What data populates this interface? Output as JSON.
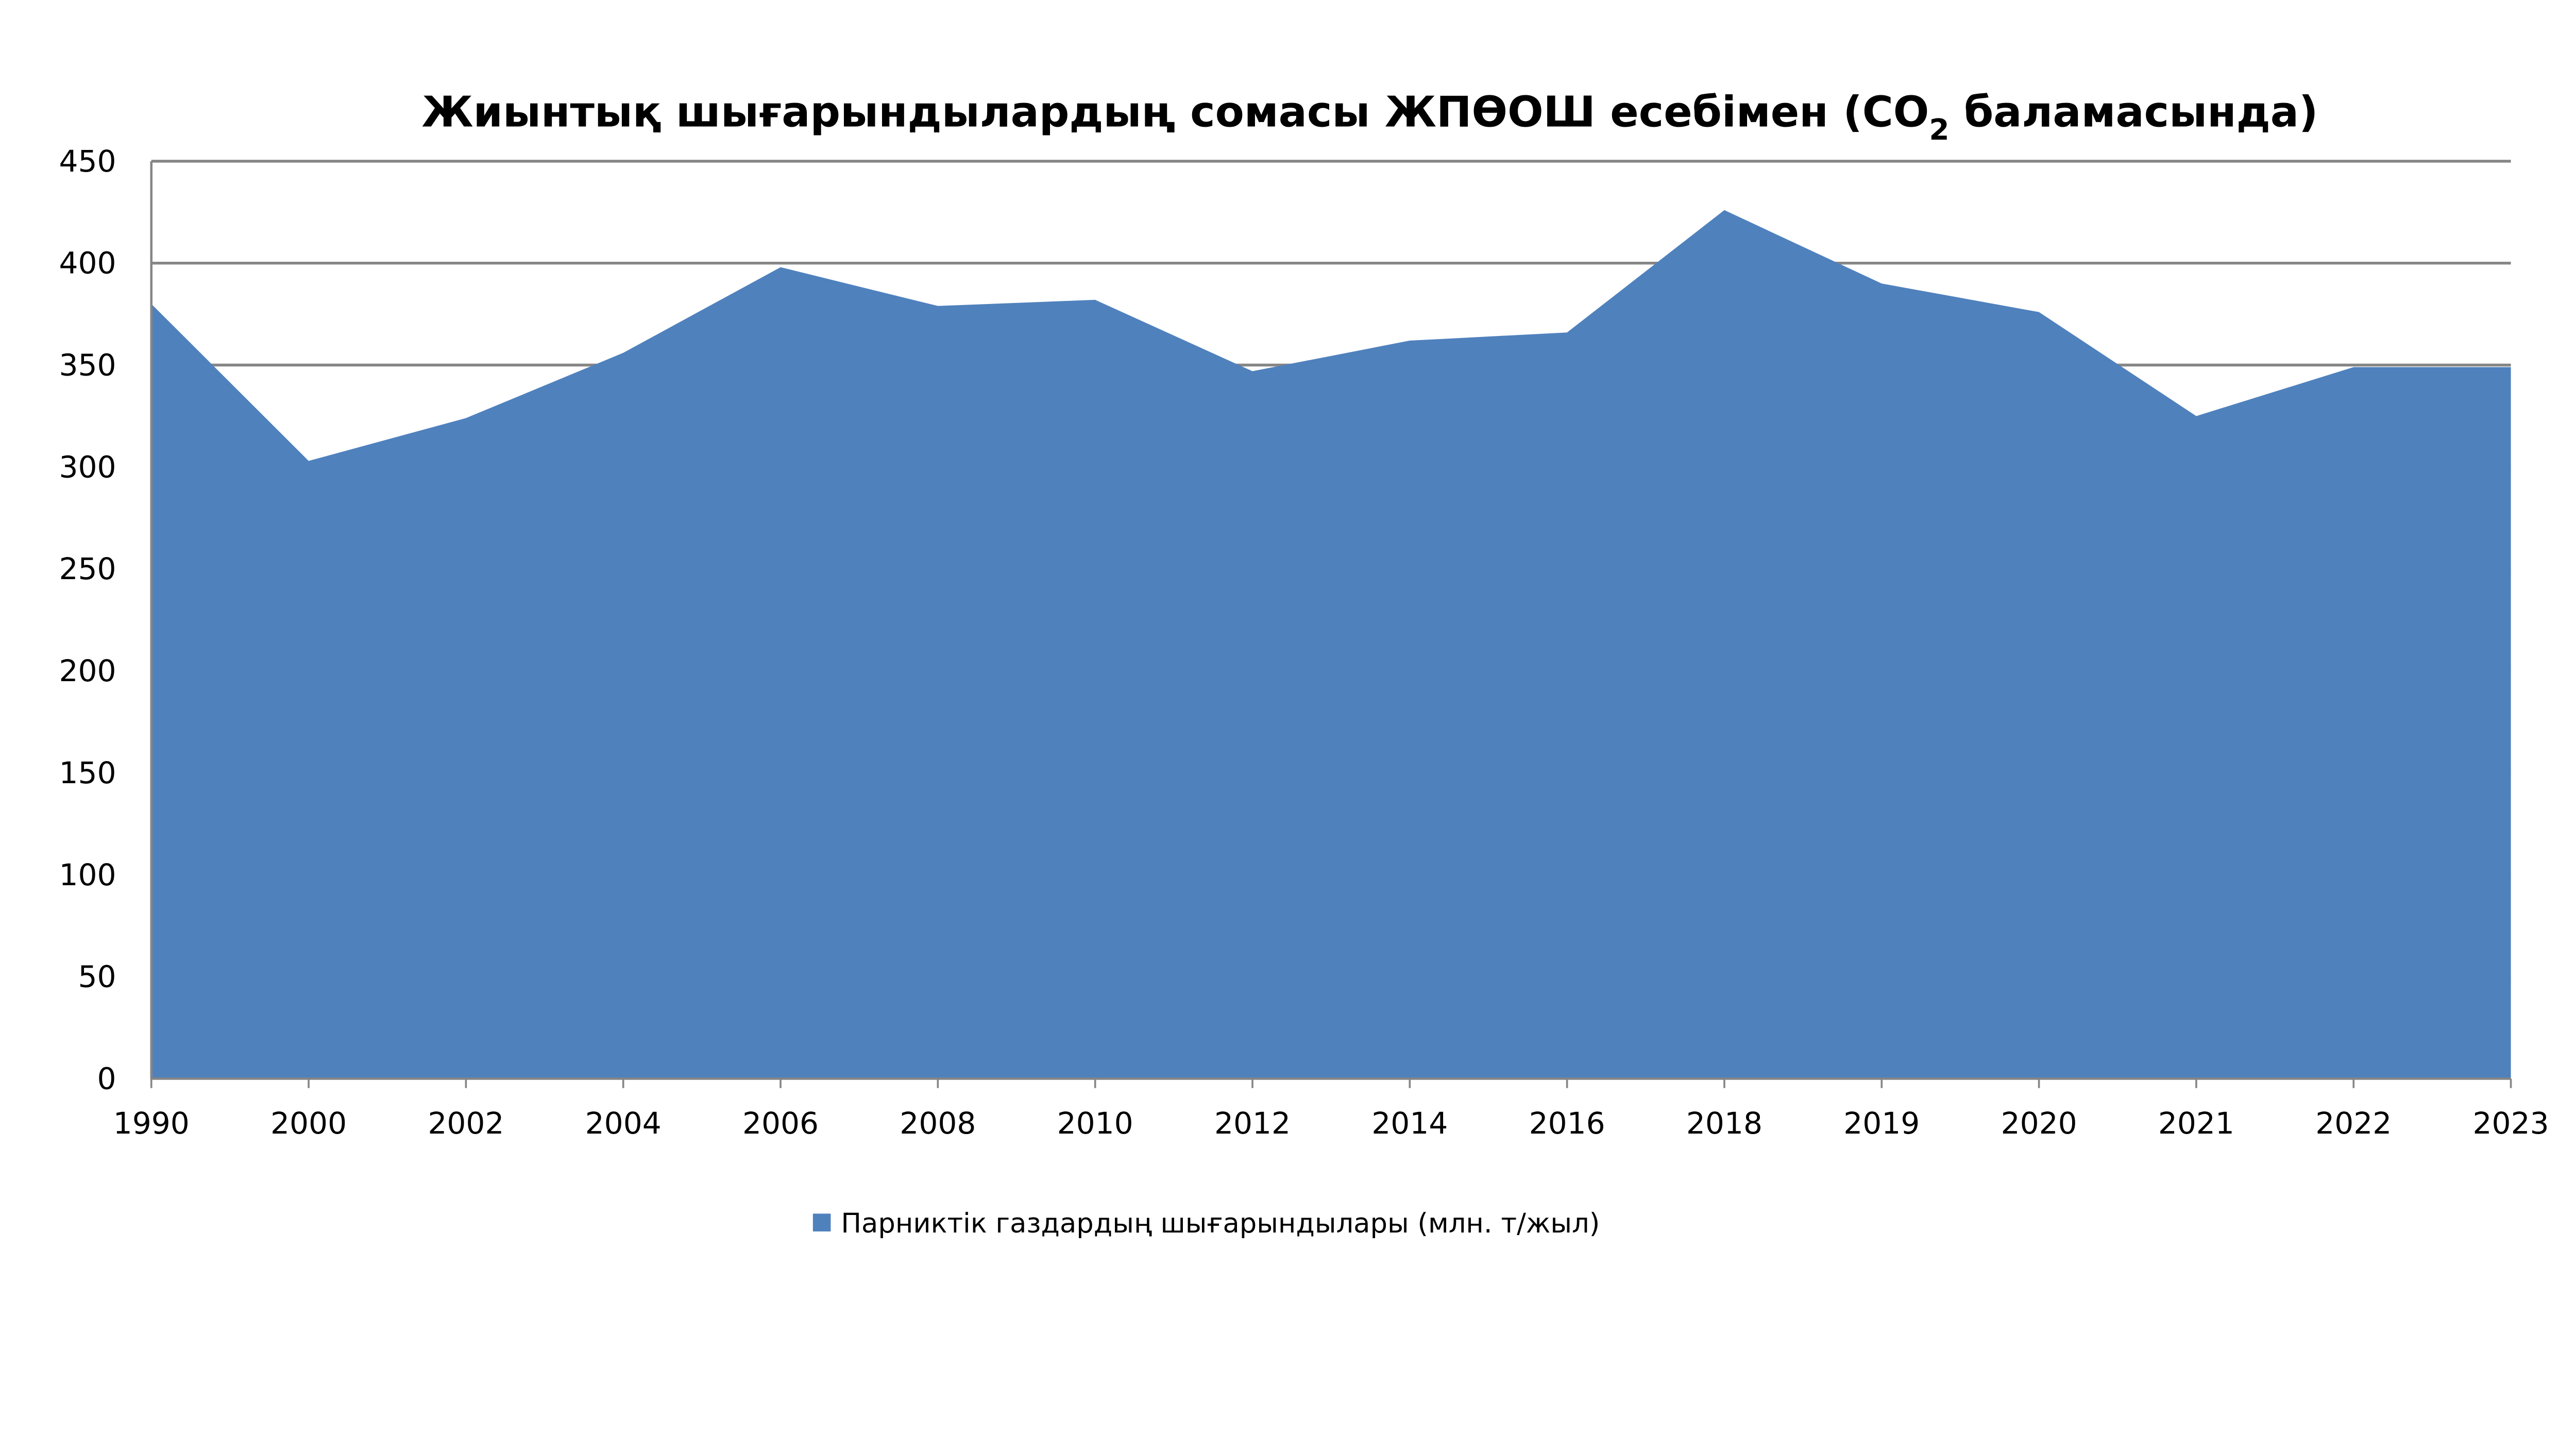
{
  "colors": {
    "area": "#4F81BD",
    "grid": "#868686",
    "axis": "#868686"
  },
  "chart_data": {
    "type": "area",
    "title": "Жиынтық шығарындылардың сомасы ЖПӨОШ есебімен  (CO₂ баламасында)",
    "title_parts": {
      "main": "Жиынтық шығарындылардың сомасы ЖПӨОШ есебімен  (CO",
      "sub": "2",
      "end": " баламасында)"
    },
    "xlabel": "",
    "ylabel": "",
    "categories": [
      "1990",
      "2000",
      "2002",
      "2004",
      "2006",
      "2008",
      "2010",
      "2012",
      "2014",
      "2016",
      "2018",
      "2019",
      "2020",
      "2021",
      "2022",
      "2023"
    ],
    "series": [
      {
        "name": "Парниктік газдардың шығарындылары  (млн. т/жыл)",
        "values": [
          380,
          303,
          324,
          356,
          398,
          379,
          382,
          347,
          362,
          366,
          426,
          390,
          376,
          325,
          349,
          349
        ]
      }
    ],
    "ylim": [
      0,
      450
    ],
    "yticks": [
      "0",
      "50",
      "100",
      "150",
      "200",
      "250",
      "300",
      "350",
      "400",
      "450"
    ],
    "grid": true,
    "legend": "bottom-center"
  }
}
